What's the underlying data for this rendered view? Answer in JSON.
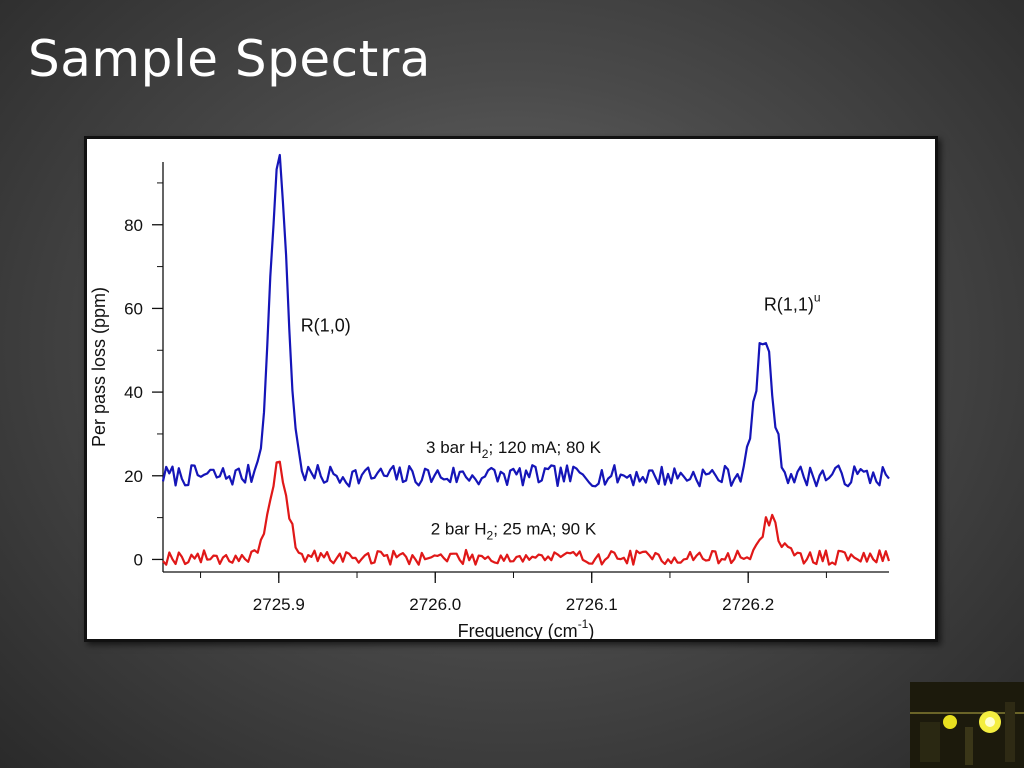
{
  "slide": {
    "title": "Sample Spectra"
  },
  "colors": {
    "series_3bar": "#1515b8",
    "series_2bar": "#e01818",
    "axis": "#111111",
    "thumbnail_glow": "#e8e020"
  },
  "icons": {
    "thumbnail": "lab-photo-thumbnail"
  },
  "chart_data": {
    "type": "line",
    "xlabel": "Frequency (cm",
    "xlabel_sup": "-1",
    "xlabel_end": ")",
    "ylabel": "Per pass loss (ppm)",
    "xlim": [
      2725.826,
      2726.29
    ],
    "ylim": [
      -3,
      95
    ],
    "x_ticks": [
      2725.9,
      2726.0,
      2726.1,
      2726.2
    ],
    "x_tick_labels": [
      "2725.9",
      "2726.0",
      "2726.1",
      "2726.2"
    ],
    "y_ticks": [
      0,
      20,
      40,
      60,
      80
    ],
    "y_tick_labels": [
      "0",
      "20",
      "40",
      "60",
      "80"
    ],
    "grid": false,
    "annotations": [
      {
        "id": "r10",
        "text": "R(1,0)",
        "sup": "",
        "x": 2725.914,
        "y": 54.5
      },
      {
        "id": "r11",
        "text": "R(1,1)",
        "sup": "u",
        "x": 2726.21,
        "y": 59.5
      }
    ],
    "series": [
      {
        "label_pre": "3 bar H",
        "label_sub": "2",
        "label_post": "; 120 mA; 80 K",
        "label_x": 2726.05,
        "label_y": 25.5,
        "baseline": 20,
        "noise": 1.6,
        "seed": 7,
        "peaks": [
          {
            "center": 2725.9,
            "height": 75,
            "width": 0.0055
          },
          {
            "center": 2726.21,
            "height": 33,
            "width": 0.0055
          }
        ]
      },
      {
        "label_pre": "2 bar H",
        "label_sub": "2",
        "label_post": "; 25 mA; 90 K",
        "label_x": 2726.05,
        "label_y": 6,
        "baseline": 0.5,
        "noise": 1.1,
        "seed": 19,
        "peaks": [
          {
            "center": 2725.9,
            "height": 22,
            "width": 0.0055
          },
          {
            "center": 2726.214,
            "height": 9,
            "width": 0.0055
          }
        ]
      }
    ]
  }
}
